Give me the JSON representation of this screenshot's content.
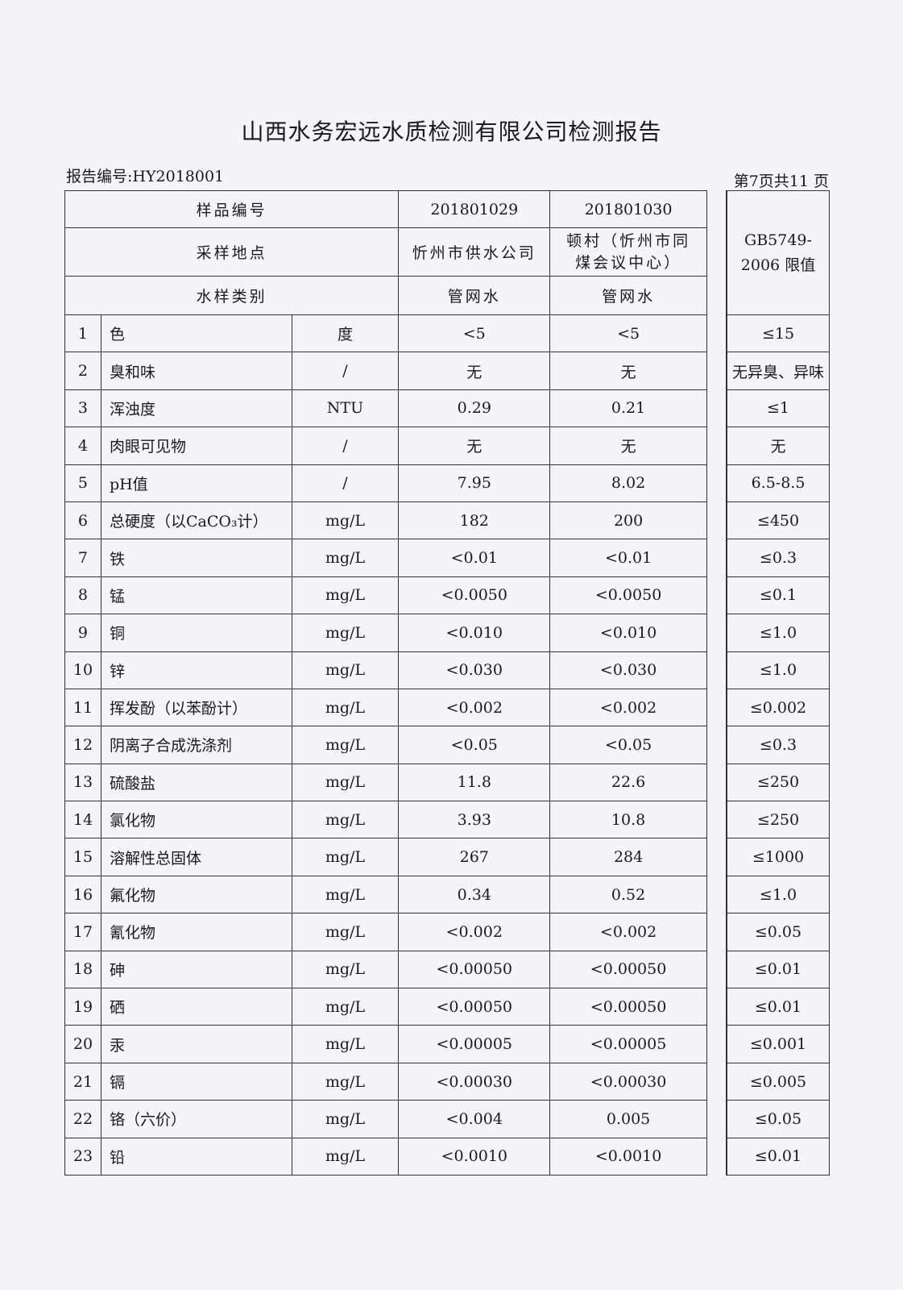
{
  "title": "山西水务宏远水质检测有限公司检测报告",
  "report_no": "报告编号:HY2018001",
  "page_info": "第7页共11 页",
  "header": {
    "sample_no_label": "样品编号",
    "location_label": "采样地点",
    "type_label": "水样类别",
    "samples": [
      {
        "no": "201801029",
        "location": "忻州市供水公司",
        "type": "管网水"
      },
      {
        "no": "201801030",
        "location": "顿村（忻州市同煤会议中心）",
        "type": "管网水"
      }
    ],
    "limit_label": "GB5749-2006 限值"
  },
  "rows": [
    {
      "n": "1",
      "item": "色",
      "unit": "度",
      "s1": "<5",
      "s2": "<5",
      "limit": "≤15"
    },
    {
      "n": "2",
      "item": "臭和味",
      "unit": "/",
      "s1": "无",
      "s2": "无",
      "limit": "无异臭、异味"
    },
    {
      "n": "3",
      "item": "浑浊度",
      "unit": "NTU",
      "s1": "0.29",
      "s2": "0.21",
      "limit": "≤1"
    },
    {
      "n": "4",
      "item": "肉眼可见物",
      "unit": "/",
      "s1": "无",
      "s2": "无",
      "limit": "无"
    },
    {
      "n": "5",
      "item": "pH值",
      "unit": "/",
      "s1": "7.95",
      "s2": "8.02",
      "limit": "6.5-8.5"
    },
    {
      "n": "6",
      "item": "总硬度（以CaCO₃计）",
      "unit": "mg/L",
      "s1": "182",
      "s2": "200",
      "limit": "≤450"
    },
    {
      "n": "7",
      "item": "铁",
      "unit": "mg/L",
      "s1": "<0.01",
      "s2": "<0.01",
      "limit": "≤0.3"
    },
    {
      "n": "8",
      "item": "锰",
      "unit": "mg/L",
      "s1": "<0.0050",
      "s2": "<0.0050",
      "limit": "≤0.1"
    },
    {
      "n": "9",
      "item": "铜",
      "unit": "mg/L",
      "s1": "<0.010",
      "s2": "<0.010",
      "limit": "≤1.0"
    },
    {
      "n": "10",
      "item": "锌",
      "unit": "mg/L",
      "s1": "<0.030",
      "s2": "<0.030",
      "limit": "≤1.0"
    },
    {
      "n": "11",
      "item": "挥发酚（以苯酚计）",
      "unit": "mg/L",
      "s1": "<0.002",
      "s2": "<0.002",
      "limit": "≤0.002"
    },
    {
      "n": "12",
      "item": "阴离子合成洗涤剂",
      "unit": "mg/L",
      "s1": "<0.05",
      "s2": "<0.05",
      "limit": "≤0.3"
    },
    {
      "n": "13",
      "item": "硫酸盐",
      "unit": "mg/L",
      "s1": "11.8",
      "s2": "22.6",
      "limit": "≤250"
    },
    {
      "n": "14",
      "item": "氯化物",
      "unit": "mg/L",
      "s1": "3.93",
      "s2": "10.8",
      "limit": "≤250"
    },
    {
      "n": "15",
      "item": "溶解性总固体",
      "unit": "mg/L",
      "s1": "267",
      "s2": "284",
      "limit": "≤1000"
    },
    {
      "n": "16",
      "item": "氟化物",
      "unit": "mg/L",
      "s1": "0.34",
      "s2": "0.52",
      "limit": "≤1.0"
    },
    {
      "n": "17",
      "item": "氰化物",
      "unit": "mg/L",
      "s1": "<0.002",
      "s2": "<0.002",
      "limit": "≤0.05"
    },
    {
      "n": "18",
      "item": "砷",
      "unit": "mg/L",
      "s1": "<0.00050",
      "s2": "<0.00050",
      "limit": "≤0.01"
    },
    {
      "n": "19",
      "item": "硒",
      "unit": "mg/L",
      "s1": "<0.00050",
      "s2": "<0.00050",
      "limit": "≤0.01"
    },
    {
      "n": "20",
      "item": "汞",
      "unit": "mg/L",
      "s1": "<0.00005",
      "s2": "<0.00005",
      "limit": "≤0.001"
    },
    {
      "n": "21",
      "item": "镉",
      "unit": "mg/L",
      "s1": "<0.00030",
      "s2": "<0.00030",
      "limit": "≤0.005"
    },
    {
      "n": "22",
      "item": "铬（六价）",
      "unit": "mg/L",
      "s1": "<0.004",
      "s2": "0.005",
      "limit": "≤0.05"
    },
    {
      "n": "23",
      "item": "铅",
      "unit": "mg/L",
      "s1": "<0.0010",
      "s2": "<0.0010",
      "limit": "≤0.01"
    }
  ]
}
